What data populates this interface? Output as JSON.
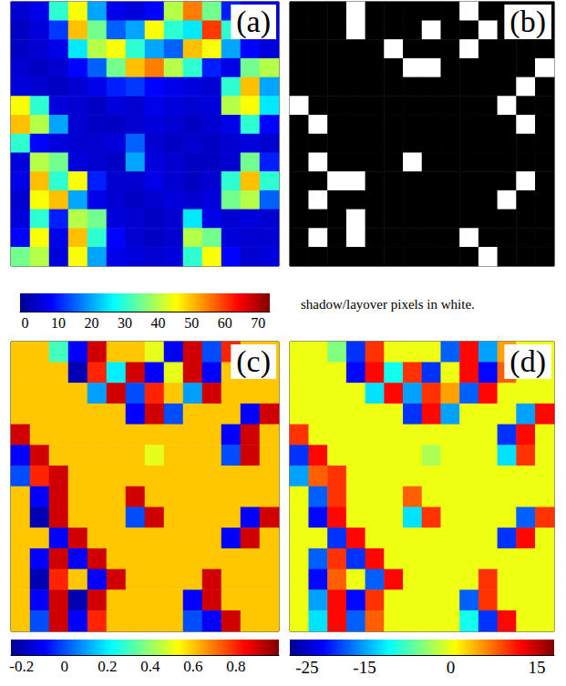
{
  "chart_data": [
    {
      "type": "heatmap",
      "title": "(a)",
      "tick_labels": false,
      "colors": [
        "#00008f",
        "#0000ff",
        "#0080ff",
        "#00ffff",
        "#80ff80",
        "#ffff00",
        "#ff8000",
        "#ff0000",
        "#800000"
      ],
      "colorbar": {
        "range": [
          -1.5,
          73.5
        ],
        "ticks": [
          0,
          10,
          20,
          30,
          40,
          50,
          60,
          70
        ]
      },
      "cells": [
        [
          4,
          6,
          30,
          45,
          20,
          6,
          5,
          8,
          40,
          55,
          35,
          10,
          5,
          4
        ],
        [
          3,
          5,
          12,
          50,
          35,
          15,
          20,
          45,
          30,
          25,
          60,
          30,
          6,
          5
        ],
        [
          3,
          4,
          6,
          25,
          40,
          45,
          30,
          20,
          15,
          50,
          45,
          20,
          8,
          5
        ],
        [
          4,
          3,
          4,
          8,
          15,
          35,
          50,
          55,
          40,
          30,
          10,
          6,
          35,
          40
        ],
        [
          5,
          4,
          3,
          4,
          6,
          10,
          12,
          8,
          6,
          5,
          4,
          30,
          50,
          20
        ],
        [
          45,
          30,
          5,
          4,
          3,
          5,
          4,
          6,
          5,
          4,
          5,
          40,
          45,
          25
        ],
        [
          50,
          40,
          20,
          4,
          3,
          3,
          4,
          5,
          4,
          3,
          4,
          6,
          30,
          8
        ],
        [
          30,
          8,
          5,
          4,
          4,
          5,
          15,
          4,
          3,
          4,
          3,
          4,
          5,
          4
        ],
        [
          5,
          40,
          35,
          5,
          4,
          3,
          20,
          5,
          4,
          3,
          3,
          4,
          35,
          10
        ],
        [
          6,
          50,
          30,
          45,
          10,
          4,
          4,
          6,
          4,
          3,
          4,
          30,
          50,
          30
        ],
        [
          4,
          45,
          50,
          20,
          6,
          4,
          3,
          4,
          5,
          4,
          5,
          35,
          40,
          15
        ],
        [
          5,
          30,
          10,
          40,
          35,
          5,
          4,
          3,
          4,
          25,
          6,
          4,
          5,
          4
        ],
        [
          8,
          45,
          6,
          50,
          30,
          8,
          4,
          3,
          4,
          40,
          35,
          5,
          4,
          4
        ],
        [
          35,
          40,
          5,
          45,
          20,
          6,
          5,
          4,
          5,
          30,
          45,
          8,
          4,
          5
        ]
      ]
    },
    {
      "type": "heatmap",
      "title": "(b)",
      "tick_labels": false,
      "annotations": [
        "shadow/layover pixels in white."
      ],
      "colors": [
        "#000000",
        "#ffffff"
      ],
      "cells": [
        [
          0,
          0,
          0,
          1,
          0,
          0,
          0,
          0,
          0,
          1,
          0,
          0,
          0,
          0
        ],
        [
          0,
          0,
          0,
          1,
          0,
          0,
          0,
          1,
          0,
          0,
          1,
          0,
          0,
          0
        ],
        [
          0,
          0,
          0,
          0,
          0,
          1,
          0,
          0,
          0,
          1,
          0,
          0,
          0,
          0
        ],
        [
          0,
          0,
          0,
          0,
          0,
          0,
          1,
          1,
          0,
          0,
          0,
          0,
          0,
          1
        ],
        [
          0,
          0,
          0,
          0,
          0,
          0,
          0,
          0,
          0,
          0,
          0,
          0,
          1,
          0
        ],
        [
          1,
          0,
          0,
          0,
          0,
          0,
          0,
          0,
          0,
          0,
          0,
          1,
          0,
          0
        ],
        [
          0,
          1,
          0,
          0,
          0,
          0,
          0,
          0,
          0,
          0,
          0,
          0,
          1,
          0
        ],
        [
          0,
          0,
          0,
          0,
          0,
          0,
          0,
          0,
          0,
          0,
          0,
          0,
          0,
          0
        ],
        [
          0,
          1,
          0,
          0,
          0,
          0,
          1,
          0,
          0,
          0,
          0,
          0,
          0,
          0
        ],
        [
          0,
          0,
          1,
          1,
          0,
          0,
          0,
          0,
          0,
          0,
          0,
          0,
          1,
          0
        ],
        [
          0,
          1,
          0,
          0,
          0,
          0,
          0,
          0,
          0,
          0,
          0,
          1,
          0,
          0
        ],
        [
          0,
          0,
          0,
          1,
          0,
          0,
          0,
          0,
          0,
          0,
          0,
          0,
          0,
          0
        ],
        [
          0,
          1,
          0,
          1,
          0,
          0,
          0,
          0,
          0,
          1,
          0,
          0,
          0,
          0
        ],
        [
          0,
          0,
          0,
          0,
          0,
          0,
          0,
          0,
          0,
          0,
          1,
          0,
          0,
          0
        ]
      ]
    },
    {
      "type": "heatmap",
      "title": "(c)",
      "tick_labels": false,
      "colors": [
        "#00008f",
        "#0000ff",
        "#0080ff",
        "#00ffff",
        "#80ff80",
        "#ffff00",
        "#ff8000",
        "#ff0000",
        "#800000"
      ],
      "colorbar": {
        "range": [
          -0.25,
          1.0
        ],
        "ticks": [
          -0.2,
          0,
          0.2,
          0.4,
          0.6,
          0.8
        ]
      },
      "cells": [
        [
          0.6,
          0.6,
          0.3,
          -0.1,
          0.9,
          0.6,
          0.6,
          0.5,
          -0.1,
          0.9,
          0.0,
          0.8,
          0.6,
          0.6
        ],
        [
          0.6,
          0.6,
          0.6,
          -0.2,
          0.8,
          0.2,
          0.9,
          -0.1,
          0.5,
          0.9,
          -0.1,
          0.6,
          0.6,
          0.6
        ],
        [
          0.6,
          0.6,
          0.6,
          0.6,
          0.1,
          0.9,
          0.0,
          0.8,
          0.6,
          0.1,
          0.9,
          0.6,
          0.6,
          0.6
        ],
        [
          0.6,
          0.6,
          0.6,
          0.6,
          0.6,
          0.6,
          -0.1,
          0.9,
          0.0,
          0.6,
          0.6,
          0.6,
          -0.1,
          0.9
        ],
        [
          0.9,
          0.6,
          0.6,
          0.6,
          0.6,
          0.6,
          0.6,
          0.6,
          0.6,
          0.6,
          0.6,
          -0.1,
          0.9,
          0.6
        ],
        [
          -0.1,
          0.9,
          0.6,
          0.6,
          0.6,
          0.6,
          0.6,
          0.5,
          0.6,
          0.6,
          0.6,
          0.0,
          0.9,
          0.6
        ],
        [
          0.0,
          0.8,
          0.9,
          0.6,
          0.6,
          0.6,
          0.6,
          0.6,
          0.6,
          0.6,
          0.6,
          0.6,
          0.6,
          0.6
        ],
        [
          0.6,
          -0.1,
          0.9,
          0.6,
          0.6,
          0.6,
          0.9,
          0.6,
          0.6,
          0.6,
          0.6,
          0.6,
          0.6,
          0.6
        ],
        [
          0.6,
          -0.2,
          0.9,
          0.6,
          0.6,
          0.6,
          0.0,
          0.9,
          0.6,
          0.6,
          0.6,
          0.6,
          -0.1,
          0.9
        ],
        [
          0.6,
          0.6,
          -0.1,
          0.9,
          0.6,
          0.6,
          0.6,
          0.6,
          0.6,
          0.6,
          0.6,
          -0.1,
          0.9,
          0.6
        ],
        [
          0.6,
          -0.1,
          0.9,
          -0.1,
          0.9,
          0.6,
          0.6,
          0.6,
          0.6,
          0.6,
          0.6,
          0.6,
          0.6,
          0.6
        ],
        [
          0.6,
          -0.2,
          0.8,
          0.6,
          -0.1,
          0.9,
          0.6,
          0.6,
          0.6,
          0.6,
          0.9,
          0.6,
          0.6,
          0.6
        ],
        [
          0.6,
          -0.1,
          0.9,
          -0.2,
          0.9,
          0.6,
          0.6,
          0.6,
          0.6,
          -0.1,
          0.9,
          0.6,
          0.6,
          0.6
        ],
        [
          0.6,
          0.0,
          0.9,
          -0.1,
          0.8,
          0.6,
          0.6,
          0.6,
          0.6,
          0.0,
          -0.1,
          0.9,
          0.6,
          0.6
        ]
      ]
    },
    {
      "type": "heatmap",
      "title": "(d)",
      "tick_labels": false,
      "colors": [
        "#00008f",
        "#0000ff",
        "#0080ff",
        "#00ffff",
        "#80ff80",
        "#ffff00",
        "#ff8000",
        "#ff0000",
        "#800000"
      ],
      "colorbar": {
        "range": [
          -28,
          18
        ],
        "ticks": [
          -25,
          -15,
          0,
          15
        ]
      },
      "cells": [
        [
          0,
          0,
          -5,
          -20,
          10,
          0,
          0,
          0,
          -18,
          12,
          -15,
          5,
          0,
          0
        ],
        [
          0,
          0,
          0,
          -22,
          12,
          -10,
          10,
          -20,
          0,
          12,
          -22,
          8,
          0,
          0
        ],
        [
          0,
          0,
          0,
          0,
          -12,
          12,
          -15,
          10,
          5,
          -18,
          12,
          0,
          0,
          0
        ],
        [
          0,
          0,
          0,
          0,
          0,
          0,
          -20,
          12,
          -15,
          0,
          0,
          0,
          -15,
          12
        ],
        [
          10,
          0,
          0,
          0,
          0,
          0,
          0,
          0,
          0,
          0,
          0,
          -20,
          12,
          0
        ],
        [
          -20,
          12,
          0,
          0,
          0,
          0,
          0,
          -3,
          0,
          0,
          0,
          -12,
          10,
          0
        ],
        [
          -15,
          8,
          10,
          0,
          0,
          0,
          0,
          0,
          0,
          0,
          0,
          0,
          0,
          0
        ],
        [
          0,
          -18,
          10,
          0,
          0,
          0,
          8,
          0,
          0,
          0,
          0,
          0,
          0,
          0
        ],
        [
          0,
          -22,
          12,
          0,
          0,
          0,
          -12,
          10,
          0,
          0,
          0,
          0,
          -18,
          10
        ],
        [
          0,
          0,
          -20,
          12,
          0,
          0,
          0,
          0,
          0,
          0,
          0,
          -20,
          12,
          0
        ],
        [
          0,
          -18,
          10,
          -20,
          12,
          0,
          0,
          0,
          0,
          0,
          0,
          0,
          0,
          0
        ],
        [
          0,
          -22,
          8,
          0,
          -18,
          12,
          0,
          0,
          0,
          0,
          10,
          0,
          0,
          0
        ],
        [
          0,
          -15,
          12,
          -22,
          10,
          0,
          0,
          0,
          0,
          -18,
          10,
          0,
          0,
          0
        ],
        [
          0,
          -12,
          12,
          -18,
          8,
          0,
          0,
          0,
          0,
          -10,
          -20,
          12,
          0,
          0
        ]
      ]
    }
  ]
}
